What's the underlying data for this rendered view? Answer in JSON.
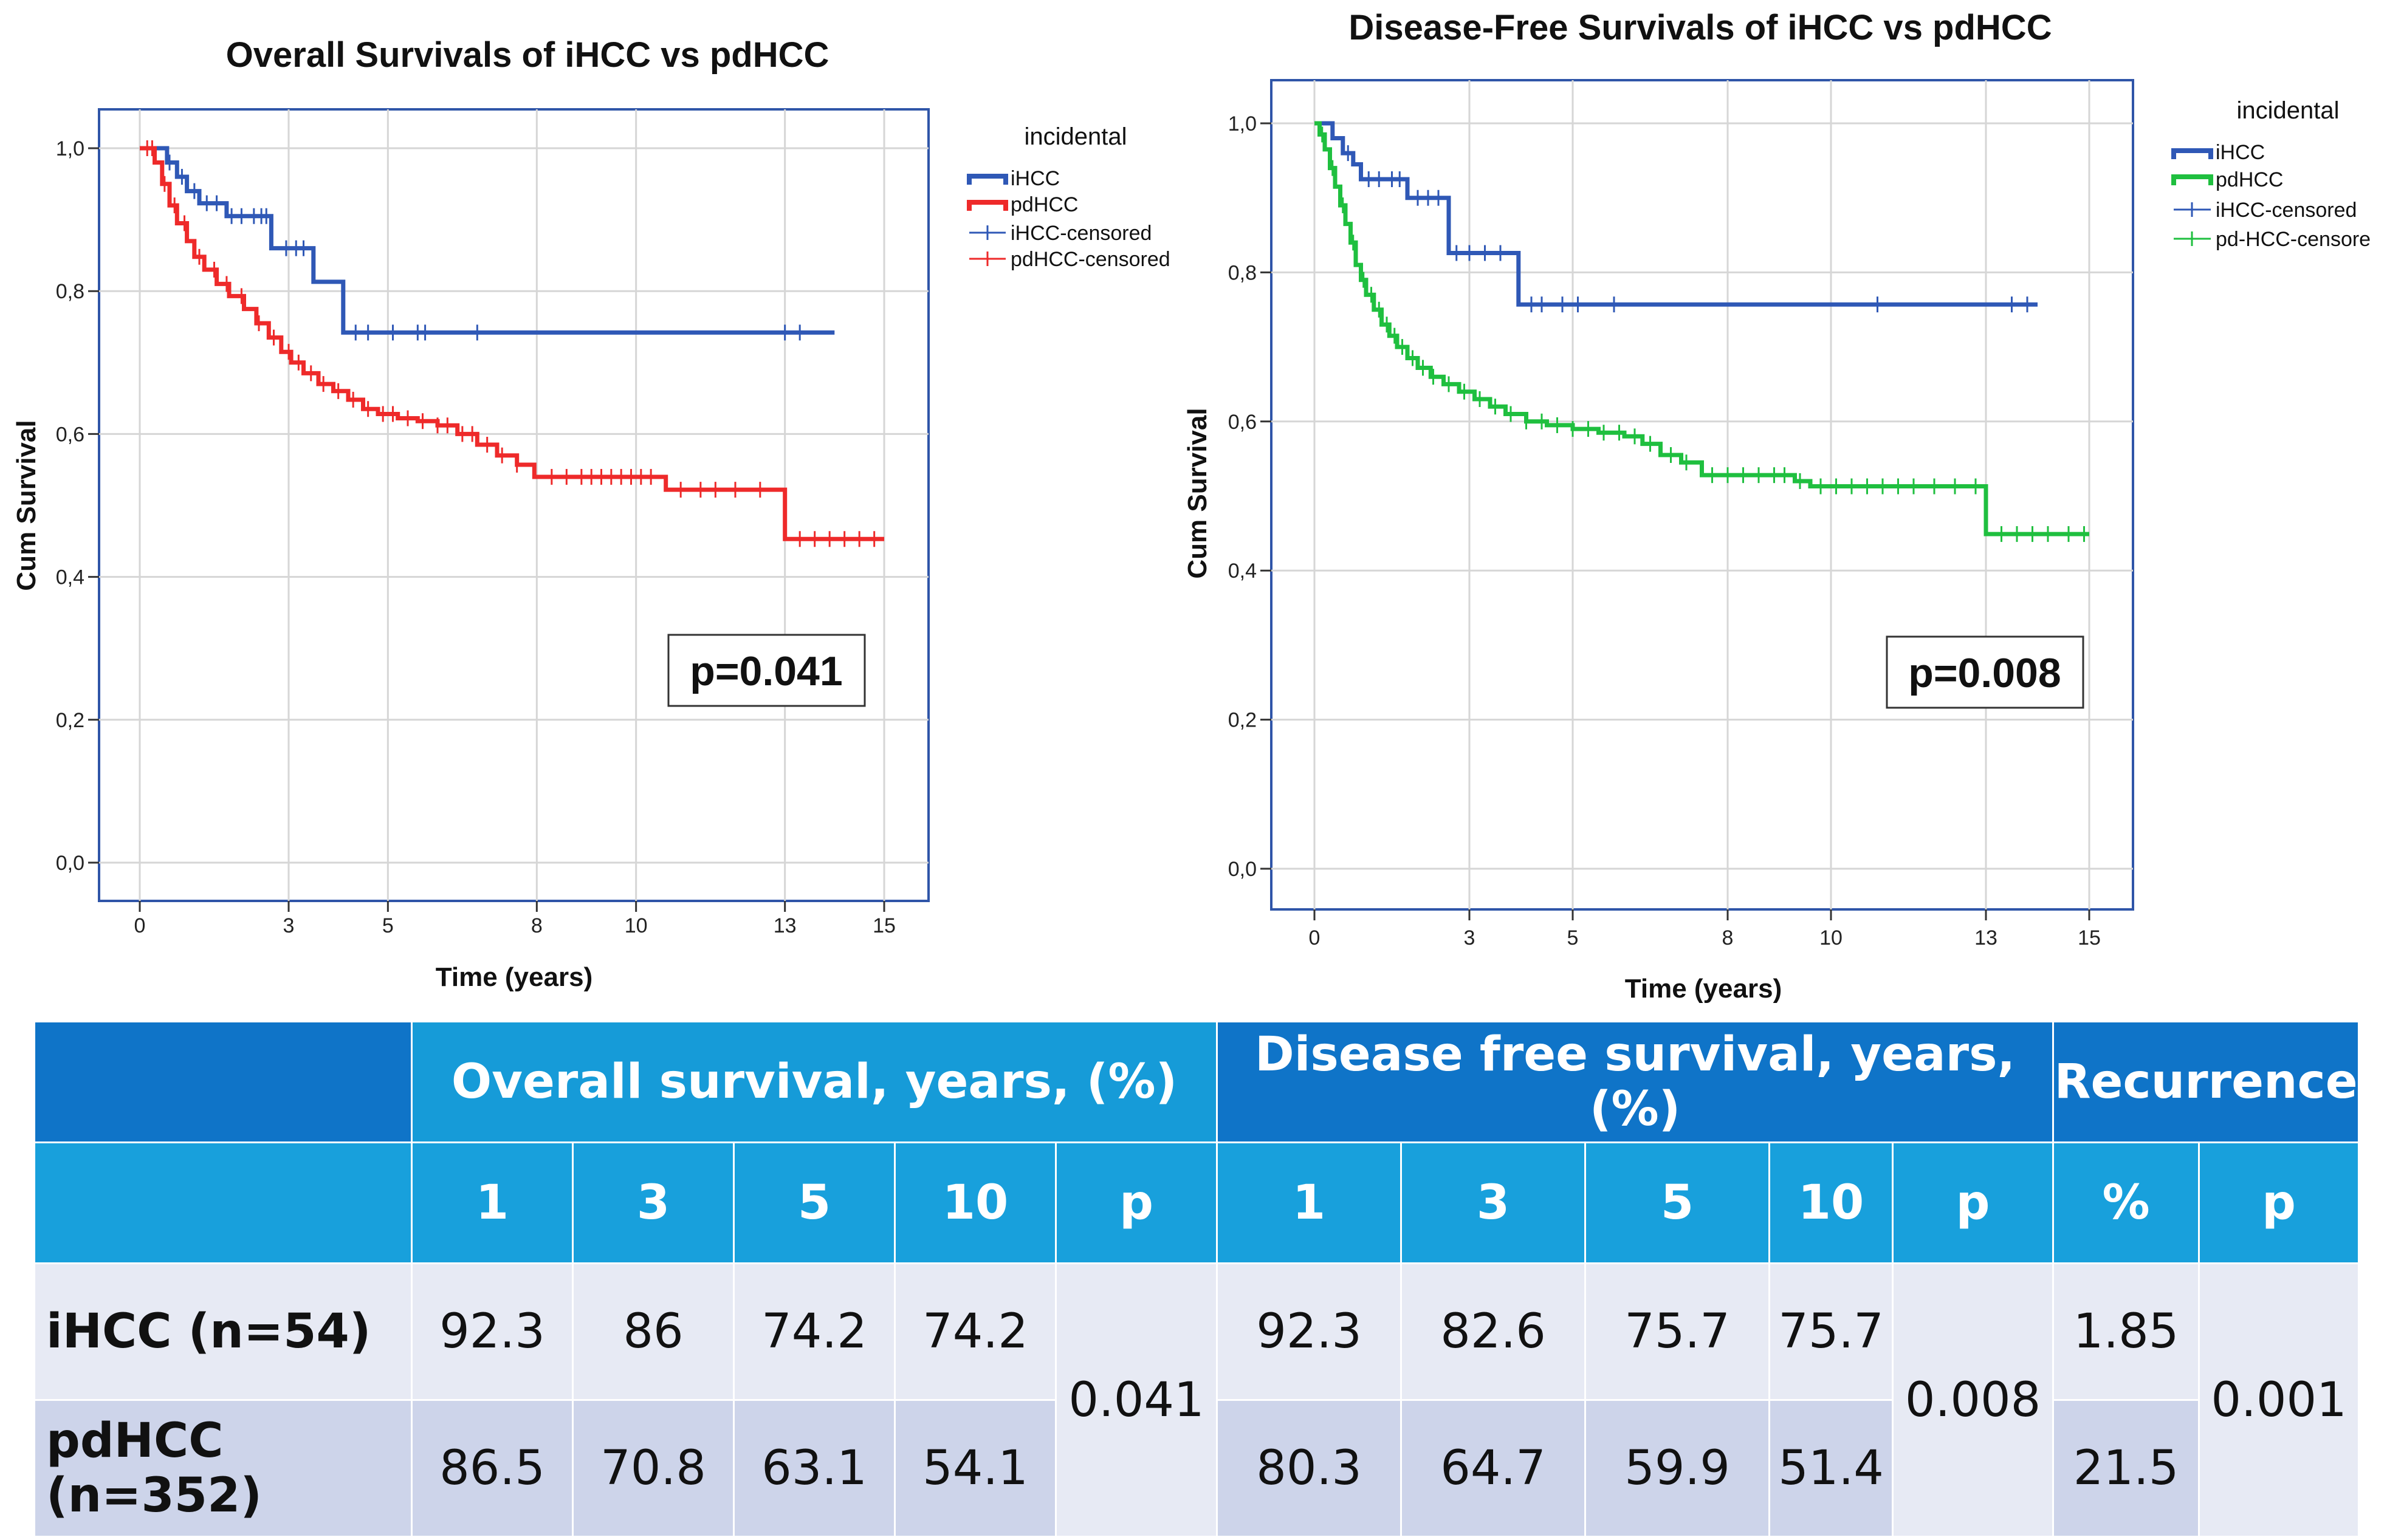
{
  "chart_data": [
    {
      "type": "line",
      "subtype": "kaplan-meier",
      "title": "Overall Survivals of iHCC vs pdHCC",
      "xlabel": "Time (years)",
      "ylabel": "Cum Survival",
      "xlim": [
        0,
        15
      ],
      "ylim": [
        0,
        1.0
      ],
      "xticks": [
        "0",
        "3",
        "5",
        "8",
        "10",
        "13",
        "15"
      ],
      "yticks": [
        "0,0",
        "0,2",
        "0,4",
        "0,6",
        "0,8",
        "1,0"
      ],
      "legend_title": "incidental",
      "legend_position": "right",
      "legend_entries": [
        "iHCC",
        "pdHCC",
        "iHCC-censored",
        "pdHCC-censored"
      ],
      "annotation": "p=0.041",
      "series": [
        {
          "name": "iHCC",
          "color": "#2f58b6",
          "steps": [
            [
              0.0,
              1.0
            ],
            [
              0.25,
              1.0
            ],
            [
              0.55,
              0.98
            ],
            [
              0.75,
              0.96
            ],
            [
              0.95,
              0.94
            ],
            [
              1.2,
              0.923
            ],
            [
              1.7,
              0.923
            ],
            [
              1.75,
              0.905
            ],
            [
              2.65,
              0.905
            ],
            [
              2.65,
              0.89
            ],
            [
              2.65,
              0.887
            ],
            [
              2.65,
              0.886
            ],
            [
              2.65,
              0.885
            ],
            [
              2.65,
              0.884
            ],
            [
              2.65,
              0.883
            ],
            [
              2.65,
              0.882
            ],
            [
              2.65,
              0.881
            ],
            [
              2.65,
              0.88
            ],
            [
              2.65,
              0.879
            ],
            [
              2.65,
              0.878
            ],
            [
              2.65,
              0.877
            ],
            [
              2.65,
              0.876
            ],
            [
              2.65,
              0.875
            ],
            [
              2.65,
              0.874
            ],
            [
              2.65,
              0.873
            ],
            [
              2.65,
              0.872
            ],
            [
              2.65,
              0.871
            ],
            [
              2.65,
              0.87
            ],
            [
              2.65,
              0.869
            ],
            [
              2.65,
              0.868
            ],
            [
              2.65,
              0.867
            ],
            [
              2.65,
              0.866
            ],
            [
              2.65,
              0.865
            ],
            [
              2.65,
              0.864
            ],
            [
              2.65,
              0.863
            ],
            [
              2.65,
              0.862
            ],
            [
              2.65,
              0.861
            ],
            [
              2.65,
              0.86
            ],
            [
              3.5,
              0.86
            ],
            [
              3.5,
              0.813
            ],
            [
              4.1,
              0.813
            ],
            [
              4.1,
              0.742
            ],
            [
              14.0,
              0.742
            ]
          ],
          "censored": [
            0.6,
            0.85,
            1.1,
            1.35,
            1.55,
            1.85,
            2.05,
            2.3,
            2.45,
            2.55,
            2.95,
            3.15,
            3.3,
            4.35,
            4.6,
            5.1,
            5.6,
            5.75,
            6.8,
            13.0,
            13.3
          ]
        },
        {
          "name": "pdHCC",
          "color": "#ee2a2a",
          "steps": [
            [
              0.0,
              1.0
            ],
            [
              0.2,
              1.0
            ],
            [
              0.3,
              0.98
            ],
            [
              0.45,
              0.95
            ],
            [
              0.6,
              0.92
            ],
            [
              0.75,
              0.895
            ],
            [
              0.95,
              0.87
            ],
            [
              1.1,
              0.848
            ],
            [
              1.3,
              0.83
            ],
            [
              1.55,
              0.81
            ],
            [
              1.8,
              0.793
            ],
            [
              2.1,
              0.775
            ],
            [
              2.35,
              0.755
            ],
            [
              2.6,
              0.735
            ],
            [
              2.85,
              0.715
            ],
            [
              3.05,
              0.7
            ],
            [
              3.3,
              0.685
            ],
            [
              3.6,
              0.67
            ],
            [
              3.9,
              0.66
            ],
            [
              4.2,
              0.648
            ],
            [
              4.5,
              0.635
            ],
            [
              4.8,
              0.628
            ],
            [
              5.2,
              0.622
            ],
            [
              5.6,
              0.618
            ],
            [
              6.0,
              0.612
            ],
            [
              6.4,
              0.6
            ],
            [
              6.8,
              0.585
            ],
            [
              7.2,
              0.57
            ],
            [
              7.6,
              0.557
            ],
            [
              7.95,
              0.545
            ],
            [
              7.95,
              0.54
            ],
            [
              10.6,
              0.54
            ],
            [
              10.6,
              0.522
            ],
            [
              13.0,
              0.522
            ],
            [
              13.0,
              0.453
            ],
            [
              15.0,
              0.453
            ]
          ],
          "censored": [
            0.15,
            0.25,
            0.5,
            0.7,
            0.9,
            1.2,
            1.5,
            1.75,
            2.05,
            2.4,
            2.7,
            3.0,
            3.2,
            3.45,
            3.7,
            4.0,
            4.3,
            4.6,
            4.9,
            5.1,
            5.4,
            5.7,
            6.0,
            6.2,
            6.5,
            6.7,
            7.0,
            7.3,
            7.6,
            8.3,
            8.6,
            8.9,
            9.1,
            9.3,
            9.5,
            9.7,
            9.9,
            10.1,
            10.3,
            10.9,
            11.3,
            11.6,
            12.0,
            12.5,
            13.3,
            13.6,
            13.9,
            14.2,
            14.5,
            14.8
          ]
        }
      ]
    },
    {
      "type": "line",
      "subtype": "kaplan-meier",
      "title": "Disease-Free Survivals of iHCC vs pdHCC",
      "xlabel": "Time (years)",
      "ylabel": "Cum Survival",
      "xlim": [
        0,
        15
      ],
      "ylim": [
        0,
        1.0
      ],
      "xticks": [
        "0",
        "3",
        "5",
        "8",
        "10",
        "13",
        "15"
      ],
      "yticks": [
        "0,0",
        "0,2",
        "0,4",
        "0,6",
        "0,8",
        "1,0"
      ],
      "legend_title": "incidental",
      "legend_position": "right",
      "legend_entries": [
        "iHCC",
        "pdHCC",
        "iHCC-censored",
        "pd-HCC-censore"
      ],
      "annotation": "p=0.008",
      "series": [
        {
          "name": "iHCC",
          "color": "#2f58b6",
          "steps": [
            [
              0.0,
              1.0
            ],
            [
              0.35,
              1.0
            ],
            [
              0.35,
              0.98
            ],
            [
              0.55,
              0.96
            ],
            [
              0.75,
              0.945
            ],
            [
              0.9,
              0.925
            ],
            [
              1.8,
              0.925
            ],
            [
              1.8,
              0.9
            ],
            [
              2.6,
              0.9
            ],
            [
              2.6,
              0.826
            ],
            [
              3.95,
              0.826
            ],
            [
              3.95,
              0.757
            ],
            [
              14.0,
              0.757
            ]
          ],
          "censored": [
            0.65,
            1.05,
            1.25,
            1.5,
            1.65,
            2.0,
            2.2,
            2.4,
            2.75,
            3.0,
            3.3,
            3.6,
            4.2,
            4.4,
            4.8,
            5.1,
            5.8,
            10.9,
            13.5,
            13.8
          ]
        },
        {
          "name": "pdHCC",
          "color": "#1fbf3f",
          "steps": [
            [
              0.0,
              1.0
            ],
            [
              0.1,
              0.985
            ],
            [
              0.2,
              0.965
            ],
            [
              0.3,
              0.94
            ],
            [
              0.4,
              0.915
            ],
            [
              0.5,
              0.89
            ],
            [
              0.6,
              0.865
            ],
            [
              0.7,
              0.84
            ],
            [
              0.8,
              0.81
            ],
            [
              0.9,
              0.79
            ],
            [
              1.0,
              0.77
            ],
            [
              1.15,
              0.75
            ],
            [
              1.3,
              0.73
            ],
            [
              1.45,
              0.715
            ],
            [
              1.6,
              0.7
            ],
            [
              1.8,
              0.685
            ],
            [
              2.0,
              0.672
            ],
            [
              2.25,
              0.66
            ],
            [
              2.5,
              0.65
            ],
            [
              2.8,
              0.64
            ],
            [
              3.1,
              0.63
            ],
            [
              3.4,
              0.62
            ],
            [
              3.7,
              0.61
            ],
            [
              4.1,
              0.6
            ],
            [
              4.5,
              0.595
            ],
            [
              5.0,
              0.59
            ],
            [
              5.5,
              0.585
            ],
            [
              6.0,
              0.58
            ],
            [
              6.35,
              0.57
            ],
            [
              6.7,
              0.555
            ],
            [
              7.1,
              0.545
            ],
            [
              7.5,
              0.535
            ],
            [
              7.5,
              0.528
            ],
            [
              9.0,
              0.528
            ],
            [
              9.3,
              0.52
            ],
            [
              9.6,
              0.513
            ],
            [
              13.0,
              0.513
            ],
            [
              13.0,
              0.449
            ],
            [
              15.0,
              0.449
            ]
          ],
          "censored": [
            0.15,
            0.35,
            0.55,
            0.75,
            0.95,
            1.1,
            1.25,
            1.4,
            1.55,
            1.7,
            1.9,
            2.1,
            2.3,
            2.6,
            2.9,
            3.2,
            3.5,
            3.8,
            4.1,
            4.4,
            4.7,
            5.0,
            5.3,
            5.6,
            5.9,
            6.2,
            6.5,
            6.9,
            7.2,
            7.7,
            8.0,
            8.3,
            8.6,
            8.9,
            9.1,
            9.4,
            9.8,
            10.1,
            10.4,
            10.7,
            11.0,
            11.3,
            11.6,
            12.0,
            12.4,
            12.8,
            13.3,
            13.6,
            13.9,
            14.2,
            14.6,
            14.9
          ]
        }
      ]
    }
  ],
  "table": {
    "header": {
      "overall_survival": "Overall survival, years, (%)",
      "disease_free_survival": "Disease free survival, years, (%)",
      "recurrence": "Recurrence"
    },
    "subheader": {
      "os_years": [
        "1",
        "3",
        "5",
        "10",
        "p"
      ],
      "dfs_years": [
        "1",
        "3",
        "5",
        "10",
        "p"
      ],
      "recurrence": [
        "%",
        "p"
      ]
    },
    "rows": [
      {
        "label": "iHCC (n=54)",
        "os": [
          "92.3",
          "86",
          "74.2",
          "74.2"
        ],
        "dfs": [
          "92.3",
          "82.6",
          "75.7",
          "75.7"
        ],
        "recurrence_pct": "1.85"
      },
      {
        "label": "pdHCC (n=352)",
        "os": [
          "86.5",
          "70.8",
          "63.1",
          "54.1"
        ],
        "dfs": [
          "80.3",
          "64.7",
          "59.9",
          "51.4"
        ],
        "recurrence_pct": "21.5"
      }
    ],
    "p_values": {
      "os": "0.041",
      "dfs": "0.008",
      "recurrence": "0.001"
    }
  }
}
